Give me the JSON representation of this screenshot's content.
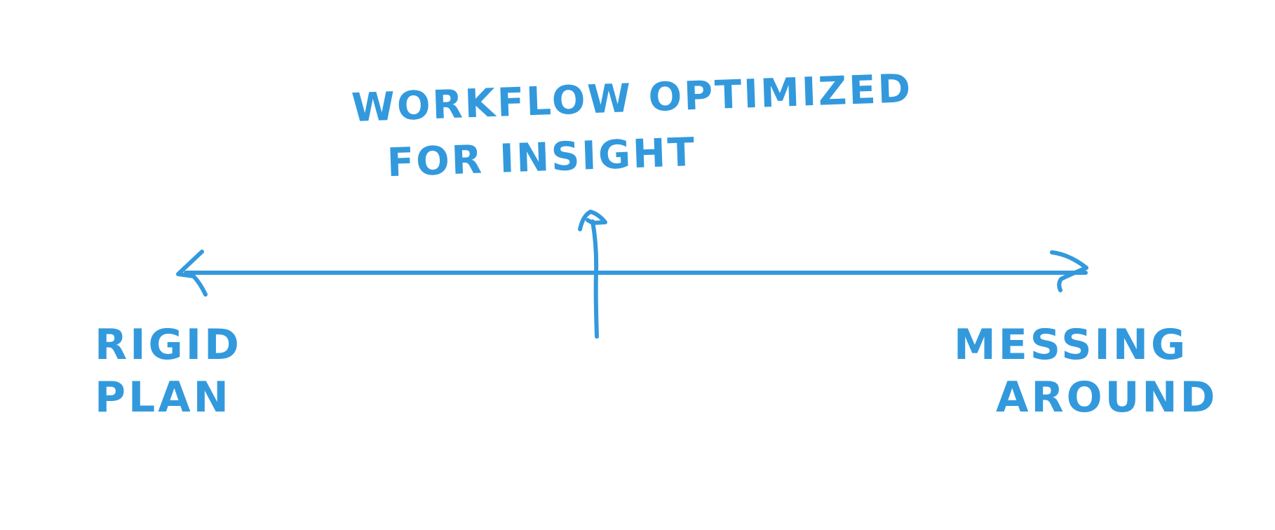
{
  "diagram": {
    "top_label": {
      "line1": "WORKFLOW OPTIMIZED",
      "line2": "FOR INSIGHT"
    },
    "left_label": {
      "line1": "RIGID",
      "line2": "PLAN"
    },
    "right_label": {
      "line1": "MESSING",
      "line2": "AROUND"
    },
    "colors": {
      "ink": "#3399dd",
      "background": "#ffffff"
    }
  }
}
